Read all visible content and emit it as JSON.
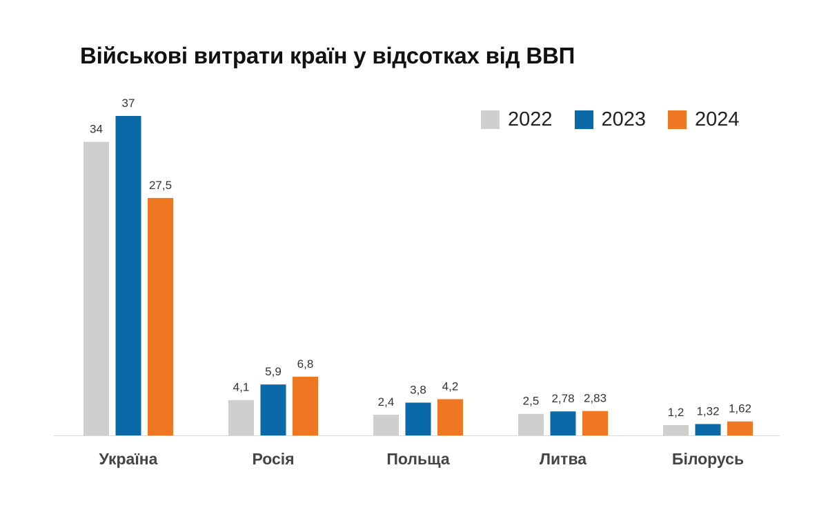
{
  "chart_data": {
    "type": "bar",
    "title": "Військові витрати країн у відсотках від ВВП",
    "categories": [
      "Україна",
      "Росія",
      "Польща",
      "Литва",
      "Білорусь"
    ],
    "series": [
      {
        "name": "2022",
        "color": "#d0cfcf",
        "values": [
          34,
          4.1,
          2.4,
          2.5,
          1.2
        ],
        "labels": [
          "34",
          "4,1",
          "2,4",
          "2,5",
          "1,2"
        ]
      },
      {
        "name": "2023",
        "color": "#0a6aa8",
        "values": [
          37,
          5.9,
          3.8,
          2.78,
          1.32
        ],
        "labels": [
          "37",
          "5,9",
          "3,8",
          "2,78",
          "1,32"
        ]
      },
      {
        "name": "2024",
        "color": "#f07722",
        "values": [
          27.5,
          6.8,
          4.2,
          2.83,
          1.62
        ],
        "labels": [
          "27,5",
          "6,8",
          "4,2",
          "2,83",
          "1,62"
        ]
      }
    ],
    "ylim": [
      0,
      37
    ],
    "grid": false,
    "legend_position": "top-right"
  }
}
